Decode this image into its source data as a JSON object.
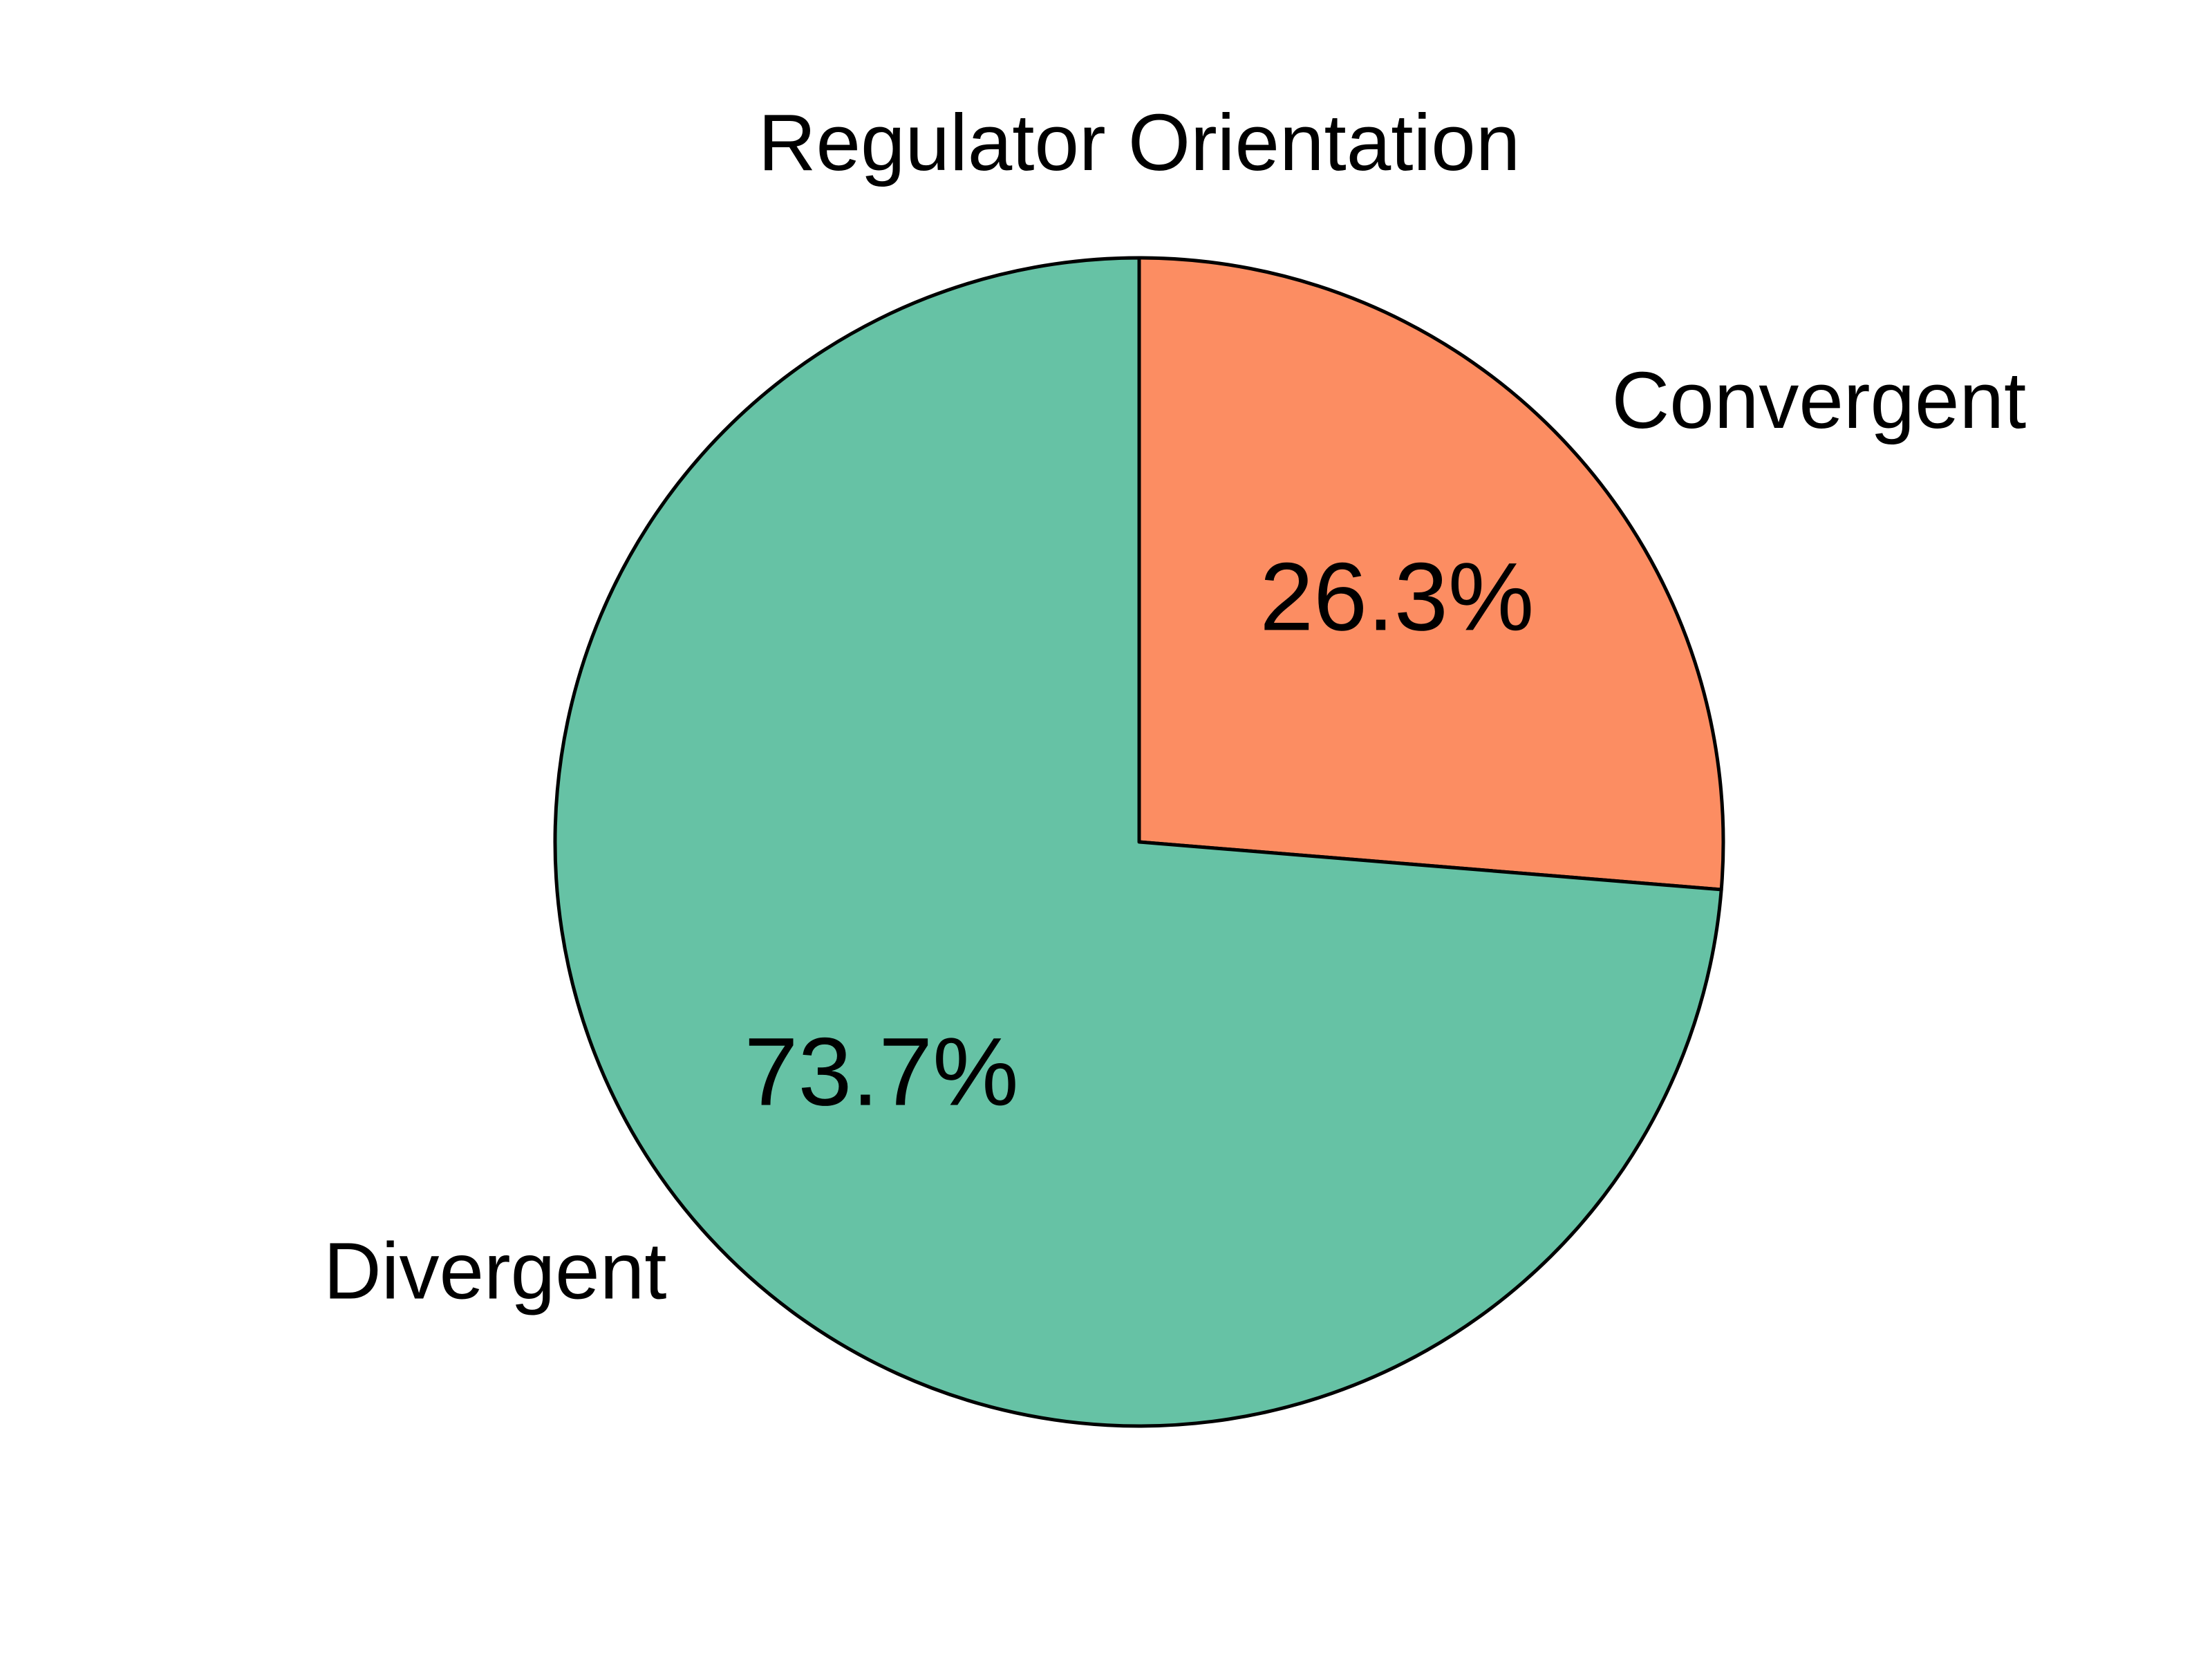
{
  "chart_data": {
    "type": "pie",
    "title": "Regulator Orientation",
    "start_angle_deg": 90,
    "direction": "clockwise",
    "slices": [
      {
        "label": "Convergent",
        "value": 26.3,
        "pct_label": "26.3%",
        "color": "#fc8d62"
      },
      {
        "label": "Divergent",
        "value": 73.7,
        "pct_label": "73.7%",
        "color": "#66c2a5"
      }
    ]
  }
}
